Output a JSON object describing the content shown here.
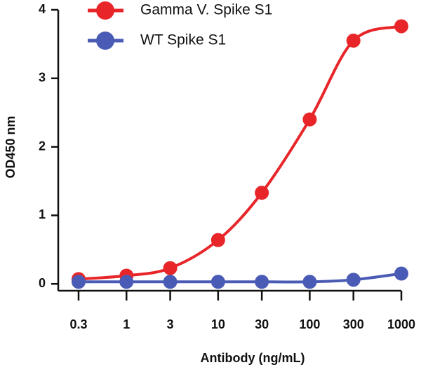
{
  "chart_data": {
    "type": "line",
    "x_label": "Antibody (ng/mL)",
    "y_label": "OD450 nm",
    "x": [
      0.3,
      1,
      3,
      10,
      30,
      100,
      300,
      1000
    ],
    "series": [
      {
        "name": "Gamma V. Spike S1",
        "color": "#e8262a",
        "values": [
          0.07,
          0.12,
          0.23,
          0.64,
          1.33,
          2.4,
          3.55,
          3.76
        ]
      },
      {
        "name": "WT Spike S1",
        "color": "#4a5bb5",
        "values": [
          0.03,
          0.03,
          0.03,
          0.03,
          0.03,
          0.03,
          0.06,
          0.15
        ]
      }
    ],
    "x_log": true,
    "xlim": [
      0.18,
      1000
    ],
    "xticks": [
      0.3,
      1,
      3,
      10,
      30,
      100,
      300,
      1000
    ],
    "ylim": [
      -0.1,
      4
    ],
    "yticks": [
      0,
      1,
      2,
      3,
      4
    ],
    "legend": "top"
  }
}
